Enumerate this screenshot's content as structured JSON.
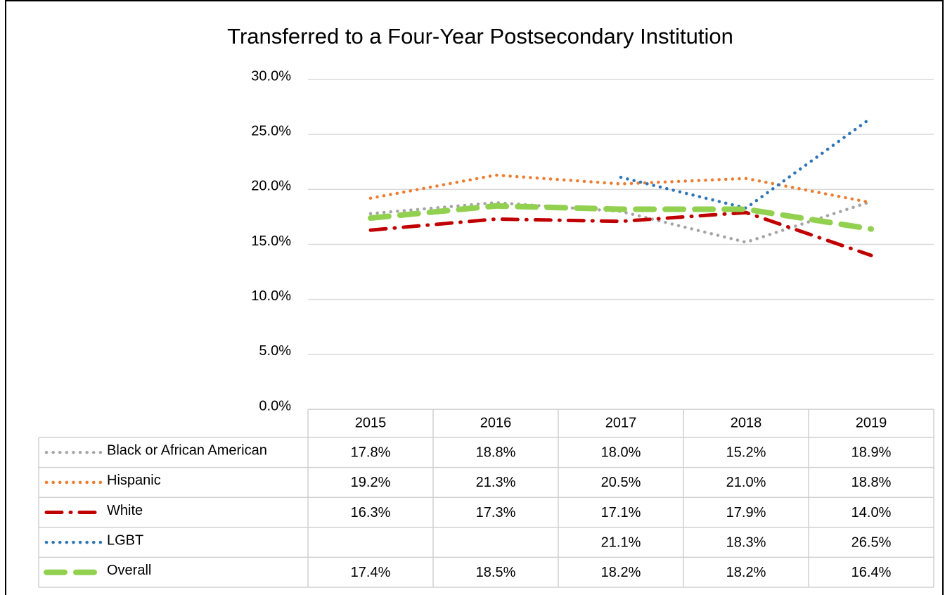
{
  "chart_data": {
    "type": "line",
    "title": "Transferred to a Four-Year Postsecondary Institution",
    "categories": [
      "2015",
      "2016",
      "2017",
      "2018",
      "2019"
    ],
    "ylim": [
      0,
      30
    ],
    "yticks": [
      {
        "value": 0,
        "label": "0.0%"
      },
      {
        "value": 5,
        "label": "5.0%"
      },
      {
        "value": 10,
        "label": "10.0%"
      },
      {
        "value": 15,
        "label": "15.0%"
      },
      {
        "value": 20,
        "label": "20.0%"
      },
      {
        "value": 25,
        "label": "25.0%"
      },
      {
        "value": 30,
        "label": "30.0%"
      }
    ],
    "grid": true,
    "series": [
      {
        "name": "Black or African American",
        "color": "#a5a5a5",
        "style": "dotted",
        "values": [
          17.8,
          18.8,
          18.0,
          15.2,
          18.9
        ],
        "value_labels": [
          "17.8%",
          "18.8%",
          "18.0%",
          "15.2%",
          "18.9%"
        ]
      },
      {
        "name": "Hispanic",
        "color": "#ed7d31",
        "style": "dotted",
        "values": [
          19.2,
          21.3,
          20.5,
          21.0,
          18.8
        ],
        "value_labels": [
          "19.2%",
          "21.3%",
          "20.5%",
          "21.0%",
          "18.8%"
        ]
      },
      {
        "name": "White",
        "color": "#c00000",
        "style": "dashdot",
        "values": [
          16.3,
          17.3,
          17.1,
          17.9,
          14.0
        ],
        "value_labels": [
          "16.3%",
          "17.3%",
          "17.1%",
          "17.9%",
          "14.0%"
        ]
      },
      {
        "name": "LGBT",
        "color": "#2e75b6",
        "style": "dotted",
        "values": [
          null,
          null,
          21.1,
          18.3,
          26.5
        ],
        "value_labels": [
          null,
          null,
          "21.1%",
          "18.3%",
          "26.5%"
        ]
      },
      {
        "name": "Overall",
        "color": "#92d050",
        "style": "dashed",
        "values": [
          17.4,
          18.5,
          18.2,
          18.2,
          16.4
        ],
        "value_labels": [
          "17.4%",
          "18.5%",
          "18.2%",
          "18.2%",
          "16.4%"
        ]
      }
    ]
  }
}
